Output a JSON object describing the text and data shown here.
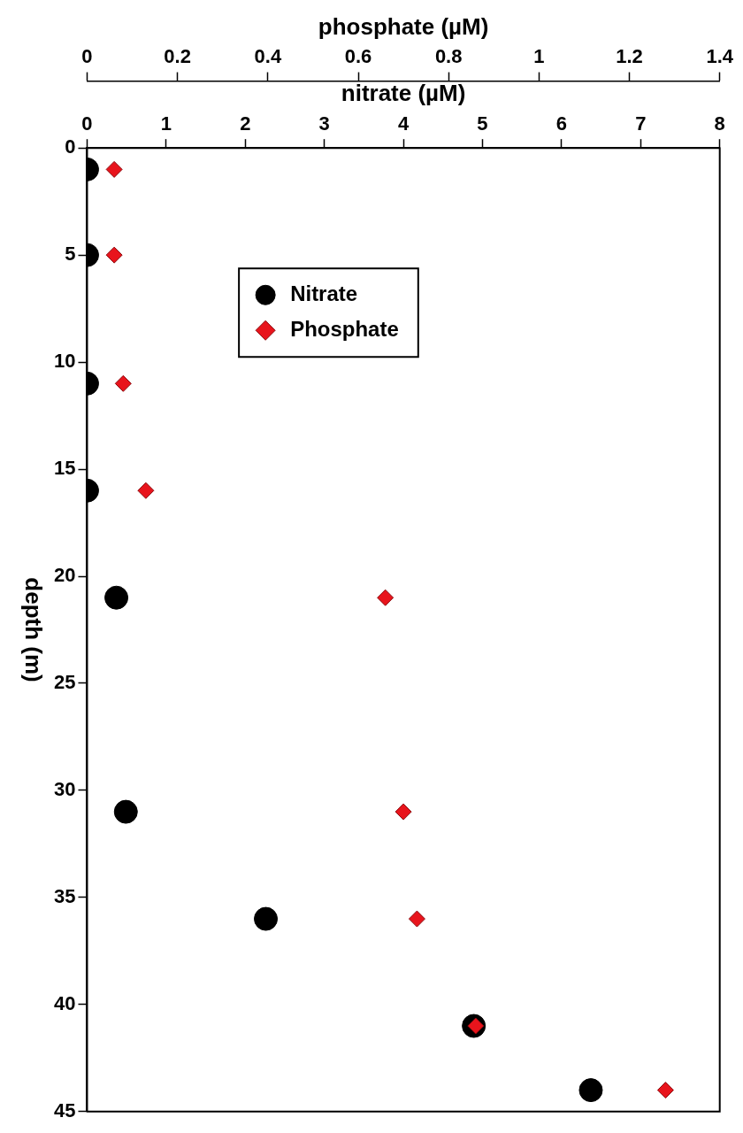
{
  "chart_data": {
    "type": "scatter",
    "xlabel": "nitrate (µM)",
    "x2label": "phosphate (µM)",
    "ylabel": "depth (m)",
    "xlim": [
      0,
      8
    ],
    "xticks": [
      0,
      1,
      2,
      3,
      4,
      5,
      6,
      7,
      8
    ],
    "x2lim": [
      0,
      1.4
    ],
    "x2ticks": [
      0,
      0.2,
      0.4,
      0.6,
      0.8,
      1,
      1.2,
      1.4
    ],
    "ylim": [
      45,
      0
    ],
    "yticks": [
      0,
      5,
      10,
      15,
      20,
      25,
      30,
      35,
      40,
      45
    ],
    "grid": false,
    "legend": "top left",
    "series": [
      {
        "name": "Nitrate",
        "color": "#000000",
        "marker": "circle",
        "x": [
          0,
          0,
          0,
          0,
          0.37,
          0.49,
          2.26,
          4.89,
          6.37
        ],
        "values": [
          1,
          5,
          11,
          16,
          21,
          31,
          36,
          41,
          44
        ]
      },
      {
        "name": "Phosphate",
        "color": "#e8141c",
        "marker": "diamond",
        "axis": "x2",
        "x": [
          0.06,
          0.06,
          0.08,
          0.13,
          0.66,
          0.7,
          0.73,
          0.86,
          1.28
        ],
        "values": [
          1,
          5,
          11,
          16,
          21,
          31,
          36,
          41,
          44
        ]
      }
    ]
  }
}
